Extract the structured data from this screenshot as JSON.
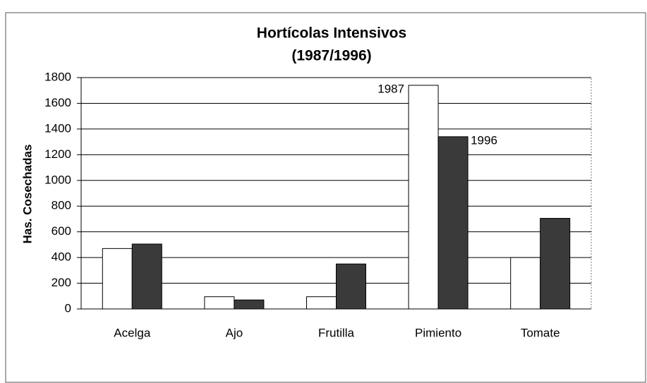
{
  "chart_data": {
    "type": "bar",
    "title": "Hortícolas Intensivos",
    "subtitle": "(1987/1996)",
    "y_label": "Has. Cosechadas",
    "categories": [
      "Acelga",
      "Ajo",
      "Frutilla",
      "Pimiento",
      "Tomate"
    ],
    "series": [
      {
        "name": "1987",
        "color": "#ffffff",
        "values": [
          470,
          95,
          95,
          1740,
          400
        ]
      },
      {
        "name": "1996",
        "color": "#3a3a3a",
        "values": [
          505,
          70,
          350,
          1340,
          705
        ]
      }
    ],
    "ylim": [
      0,
      1800
    ],
    "yticks": [
      0,
      200,
      400,
      600,
      800,
      1000,
      1200,
      1400,
      1600,
      1800
    ],
    "grid": true
  }
}
